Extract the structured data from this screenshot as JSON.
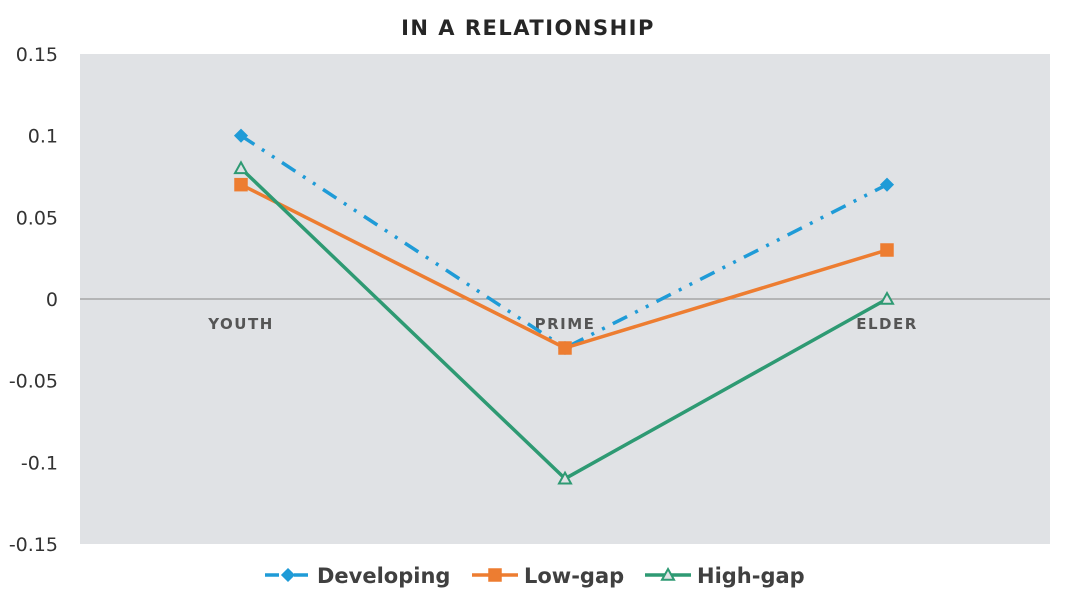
{
  "chart_data": {
    "type": "line",
    "title": "IN A RELATIONSHIP",
    "categories": [
      "YOUTH",
      "PRIME",
      "ELDER"
    ],
    "ylim": [
      -0.15,
      0.15
    ],
    "yticks": [
      0.15,
      0.1,
      0.05,
      0,
      -0.05,
      -0.1,
      -0.15
    ],
    "ytick_labels": [
      "0.15",
      "0.1",
      "0.05",
      "0",
      "-0.05",
      "-0.1",
      "-0.15"
    ],
    "grid": false,
    "plot_background": "#e0e2e5",
    "legend_position": "bottom",
    "series": [
      {
        "name": "Developing",
        "values": [
          0.1,
          -0.03,
          0.07
        ],
        "color": "#1f9bd7",
        "marker": "diamond",
        "dash": "dash-dot-dot"
      },
      {
        "name": "Low-gap",
        "values": [
          0.07,
          -0.03,
          0.03
        ],
        "color": "#ed7d31",
        "marker": "square",
        "dash": "solid"
      },
      {
        "name": "High-gap",
        "values": [
          0.08,
          -0.11,
          0.0
        ],
        "color": "#2e9a73",
        "marker": "triangle",
        "dash": "solid"
      }
    ]
  }
}
